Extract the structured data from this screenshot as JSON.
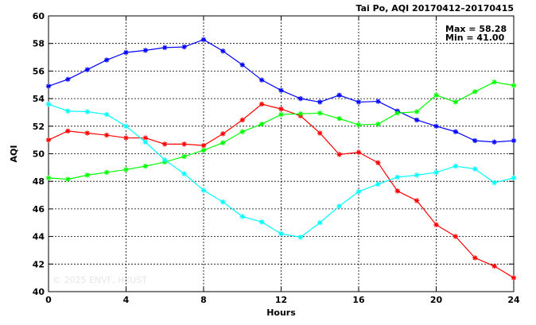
{
  "chart_data": {
    "type": "line",
    "title": "Tai Po, AQI 20170412–20170415",
    "xlabel": "Hours",
    "ylabel": "AQI",
    "xlim": [
      0,
      24
    ],
    "ylim": [
      40,
      60
    ],
    "xticks": [
      "0",
      "4",
      "8",
      "12",
      "16",
      "20",
      "24"
    ],
    "yticks": [
      "40",
      "42",
      "44",
      "46",
      "48",
      "50",
      "52",
      "54",
      "56",
      "58",
      "60"
    ],
    "grid": true,
    "x": [
      0,
      1,
      2,
      3,
      4,
      5,
      6,
      7,
      8,
      9,
      10,
      11,
      12,
      13,
      14,
      15,
      16,
      17,
      18,
      19,
      20,
      21,
      22,
      23,
      24
    ],
    "series": [
      {
        "color": "#0000ff",
        "values": [
          54.9,
          55.4,
          56.1,
          56.8,
          57.35,
          57.5,
          57.7,
          57.75,
          58.28,
          57.45,
          56.45,
          55.35,
          54.6,
          54.0,
          53.75,
          54.25,
          53.75,
          53.8,
          53.1,
          52.45,
          52.0,
          51.6,
          50.95,
          50.85,
          50.95
        ]
      },
      {
        "color": "#ff0000",
        "values": [
          51.0,
          51.65,
          51.5,
          51.35,
          51.15,
          51.15,
          50.7,
          50.7,
          50.6,
          51.45,
          52.45,
          53.6,
          53.25,
          52.75,
          51.5,
          49.95,
          50.1,
          49.35,
          47.3,
          46.6,
          44.85,
          44.0,
          42.45,
          41.85,
          41.0
        ]
      },
      {
        "color": "#00ff00",
        "values": [
          48.25,
          48.15,
          48.45,
          48.65,
          48.85,
          49.1,
          49.4,
          49.8,
          50.25,
          50.8,
          51.6,
          52.15,
          52.85,
          52.9,
          52.95,
          52.55,
          52.1,
          52.15,
          52.95,
          53.05,
          54.25,
          53.75,
          54.5,
          55.2,
          54.95
        ]
      },
      {
        "color": "#00ffff",
        "values": [
          53.6,
          53.1,
          53.05,
          52.85,
          52.0,
          50.85,
          49.55,
          48.55,
          47.35,
          46.5,
          45.45,
          45.05,
          44.2,
          43.95,
          45.0,
          46.2,
          47.25,
          47.8,
          48.3,
          48.45,
          48.65,
          49.1,
          48.9,
          47.9,
          48.25
        ]
      }
    ],
    "stats": {
      "max": "Max = 58.28",
      "min": "Min = 41.00"
    },
    "watermark": "© 2025  ENVF, HKUST"
  }
}
